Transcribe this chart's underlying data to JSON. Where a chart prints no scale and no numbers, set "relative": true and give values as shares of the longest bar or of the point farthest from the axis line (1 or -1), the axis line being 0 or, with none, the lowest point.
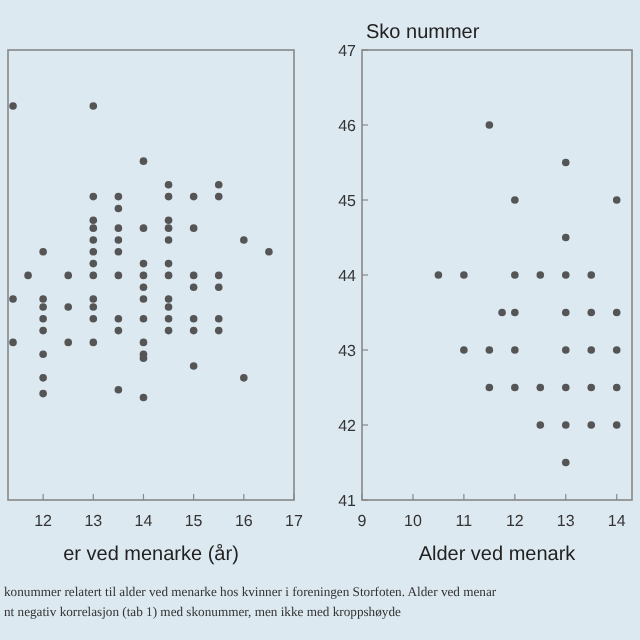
{
  "chart_data": [
    {
      "type": "scatter",
      "relative": true,
      "xlabel": "er ved menarke (år)",
      "color": "#555555",
      "marker": "circle",
      "xlim": [
        11.3,
        17
      ],
      "xticks": [
        12,
        13,
        14,
        15,
        16,
        17
      ],
      "x": [
        11.4,
        11.4,
        11.4,
        11.7,
        12,
        12,
        12,
        12,
        12,
        12,
        12,
        12,
        12.5,
        12.5,
        12.5,
        13,
        13,
        13,
        13,
        13,
        13,
        13,
        13,
        13,
        13,
        13,
        13,
        13.5,
        13.5,
        13.5,
        13.5,
        13.5,
        13.5,
        13.5,
        13.5,
        13.5,
        14,
        14,
        14,
        14,
        14,
        14,
        14,
        14,
        14,
        14,
        14,
        14.5,
        14.5,
        14.5,
        14.5,
        14.5,
        14.5,
        14.5,
        14.5,
        14.5,
        14.5,
        14.5,
        15,
        15,
        15,
        15,
        15,
        15,
        15,
        15.5,
        15.5,
        15.5,
        15.5,
        15.5,
        15.5,
        16,
        16,
        16.5
      ],
      "values": [
        1.0,
        0.51,
        0.4,
        0.57,
        0.63,
        0.51,
        0.49,
        0.46,
        0.43,
        0.37,
        0.31,
        0.27,
        0.57,
        0.49,
        0.4,
        1.0,
        0.77,
        0.71,
        0.69,
        0.66,
        0.63,
        0.6,
        0.57,
        0.51,
        0.49,
        0.46,
        0.4,
        0.77,
        0.74,
        0.69,
        0.66,
        0.63,
        0.57,
        0.46,
        0.43,
        0.28,
        0.86,
        0.69,
        0.6,
        0.57,
        0.54,
        0.51,
        0.46,
        0.4,
        0.37,
        0.36,
        0.26,
        0.8,
        0.77,
        0.71,
        0.69,
        0.66,
        0.6,
        0.57,
        0.51,
        0.49,
        0.46,
        0.43,
        0.77,
        0.69,
        0.57,
        0.54,
        0.46,
        0.43,
        0.34,
        0.8,
        0.77,
        0.57,
        0.54,
        0.46,
        0.43,
        0.66,
        0.31,
        0.63
      ],
      "annotations": [
        "konummer relatert til alder ved menarke hos kvinner i foreningen Storfoten. Alder ved menar",
        "nt negativ korrelasjon (tab 1) med skonummer, men ikke med kroppshøyde"
      ]
    },
    {
      "type": "scatter",
      "ylabel": "Sko nummer",
      "xlabel": "Alder ved menark",
      "color": "#555555",
      "marker": "circle",
      "xlim": [
        9,
        14.3
      ],
      "xticks": [
        9,
        10,
        11,
        12,
        13,
        14
      ],
      "ylim": [
        41,
        47
      ],
      "yticks": [
        41,
        42,
        43,
        44,
        45,
        46,
        47
      ],
      "x": [
        10.5,
        11,
        11,
        11.5,
        11.5,
        11.5,
        11.75,
        12,
        12,
        12,
        12,
        12,
        12.5,
        12.5,
        12.5,
        13,
        13,
        13,
        13,
        13,
        13,
        13,
        13,
        13.5,
        13.5,
        13.5,
        13.5,
        13.5,
        14,
        14,
        14,
        14,
        14
      ],
      "values": [
        44,
        44,
        43,
        46,
        43,
        42.5,
        43.5,
        45,
        44,
        43.5,
        43,
        42.5,
        44,
        42.5,
        42,
        45.5,
        44.5,
        44,
        43.5,
        43,
        42.5,
        42,
        41.5,
        44,
        43.5,
        43,
        42.5,
        42,
        45,
        43.5,
        43,
        42.5,
        42
      ]
    }
  ]
}
